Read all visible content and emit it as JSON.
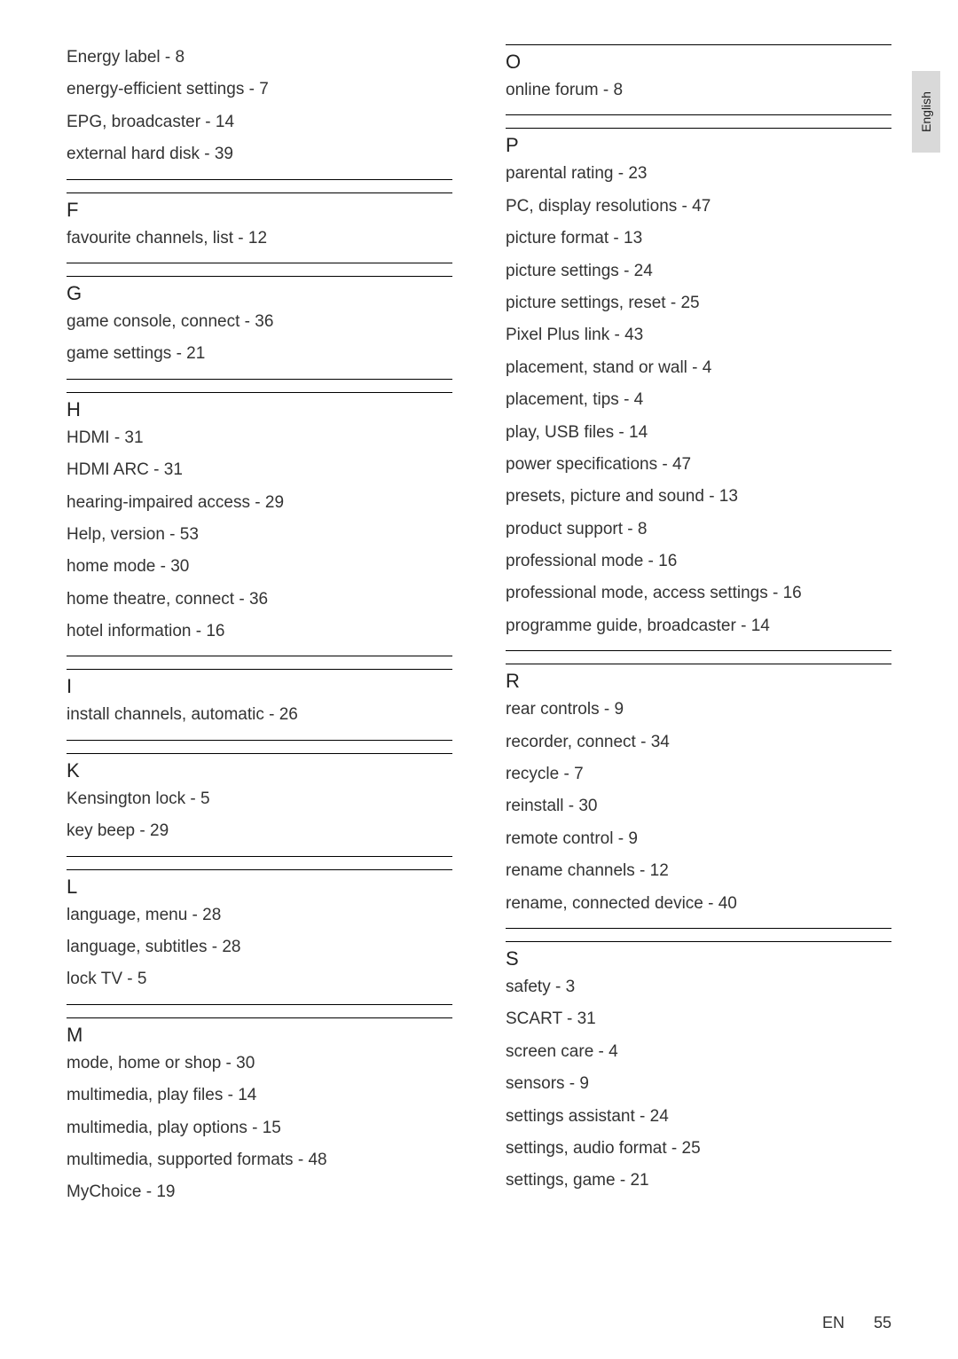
{
  "sideTab": {
    "label": "English"
  },
  "footer": {
    "lang": "EN",
    "page": "55"
  },
  "left": {
    "preEntries": [
      "Energy label - 8",
      "energy-efficient settings - 7",
      "EPG, broadcaster - 14",
      "external hard disk - 39"
    ],
    "sections": [
      {
        "letter": "F",
        "entries": [
          "favourite channels, list - 12"
        ]
      },
      {
        "letter": "G",
        "entries": [
          "game console, connect - 36",
          "game settings - 21"
        ]
      },
      {
        "letter": "H",
        "entries": [
          "HDMI - 31",
          "HDMI ARC - 31",
          "hearing-impaired access - 29",
          "Help, version - 53",
          "home mode - 30",
          "home theatre, connect - 36",
          "hotel information - 16"
        ]
      },
      {
        "letter": "I",
        "entries": [
          "install channels, automatic - 26"
        ]
      },
      {
        "letter": "K",
        "entries": [
          "Kensington lock - 5",
          "key beep - 29"
        ]
      },
      {
        "letter": "L",
        "entries": [
          "language, menu - 28",
          "language, subtitles - 28",
          "lock TV - 5"
        ]
      },
      {
        "letter": "M",
        "entries": [
          "mode, home or shop - 30",
          "multimedia, play files - 14",
          "multimedia, play options - 15",
          "multimedia, supported formats - 48",
          "MyChoice - 19"
        ]
      }
    ]
  },
  "right": {
    "sections": [
      {
        "letter": "O",
        "entries": [
          "online forum - 8"
        ]
      },
      {
        "letter": "P",
        "entries": [
          "parental rating - 23",
          "PC, display resolutions - 47",
          "picture format - 13",
          "picture settings - 24",
          "picture settings, reset - 25",
          "Pixel Plus link - 43",
          "placement, stand or wall - 4",
          "placement, tips - 4",
          "play, USB files - 14",
          "power specifications - 47",
          "presets, picture and sound - 13",
          "product support - 8",
          "professional mode - 16",
          "professional mode, access settings - 16",
          "programme guide, broadcaster - 14"
        ]
      },
      {
        "letter": "R",
        "entries": [
          "rear controls - 9",
          "recorder, connect - 34",
          "recycle - 7",
          "reinstall - 30",
          "remote control - 9",
          "rename channels - 12",
          "rename, connected device - 40"
        ]
      },
      {
        "letter": "S",
        "entries": [
          "safety - 3",
          "SCART - 31",
          "screen care - 4",
          "sensors - 9",
          "settings assistant - 24",
          "settings, audio format - 25",
          "settings, game - 21"
        ]
      }
    ]
  }
}
